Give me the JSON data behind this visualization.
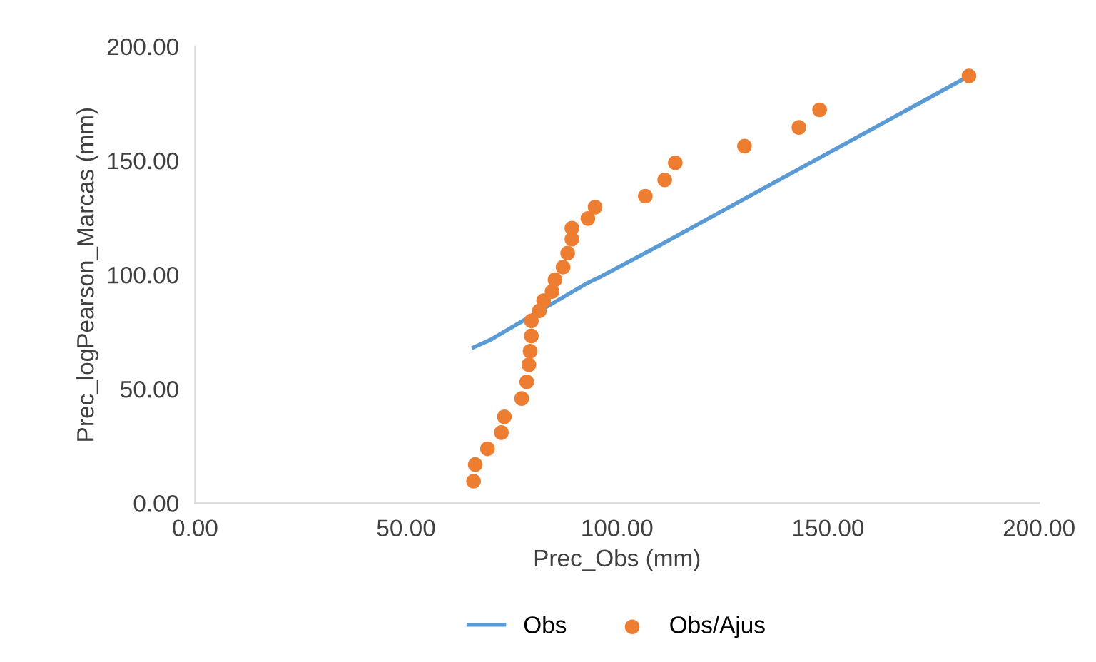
{
  "chart_data": {
    "type": "scatter",
    "xlabel": "Prec_Obs (mm)",
    "ylabel": "Prec_logPearson_Marcas (mm)",
    "xlim": [
      0,
      200
    ],
    "ylim": [
      0,
      200
    ],
    "xticks": [
      {
        "value": 0,
        "label": "0.00"
      },
      {
        "value": 50,
        "label": "50.00"
      },
      {
        "value": 100,
        "label": "100.00"
      },
      {
        "value": 150,
        "label": "150.00"
      },
      {
        "value": 200,
        "label": "200.00"
      }
    ],
    "yticks": [
      {
        "value": 0,
        "label": "0.00"
      },
      {
        "value": 50,
        "label": "50.00"
      },
      {
        "value": 100,
        "label": "100.00"
      },
      {
        "value": 150,
        "label": "150.00"
      },
      {
        "value": 200,
        "label": "200.00"
      }
    ],
    "grid": false,
    "legend": "bottom",
    "series": [
      {
        "name": "Obs",
        "type": "line",
        "color": "#5b9bd5",
        "marker": "none",
        "x": [
          66.0,
          70,
          93,
          96,
          110.2,
          183.4
        ],
        "values": [
          68.2,
          71.5,
          96.4,
          99,
          113,
          187
        ]
      },
      {
        "name": "Obs/Ajus",
        "color": "#ed7d31",
        "marker": "circle",
        "x": [
          66.0,
          66.4,
          69.3,
          72.6,
          73.3,
          77.4,
          78.6,
          79.1,
          79.4,
          79.7,
          79.7,
          81.6,
          82.6,
          84.6,
          85.3,
          87.2,
          88.3,
          89.3,
          89.3,
          93.1,
          94.8,
          106.7,
          111.3,
          113.8,
          130.2,
          143.1,
          148.0,
          183.4
        ],
        "values": [
          9.6,
          16.9,
          23.8,
          30.9,
          37.8,
          45.8,
          53.1,
          60.6,
          66.5,
          73.2,
          79.8,
          84.2,
          88.6,
          92.6,
          97.8,
          103.3,
          109.5,
          115.6,
          120.4,
          124.6,
          129.6,
          134.4,
          141.5,
          149.0,
          156.3,
          164.5,
          172.2,
          187.0
        ]
      }
    ]
  }
}
